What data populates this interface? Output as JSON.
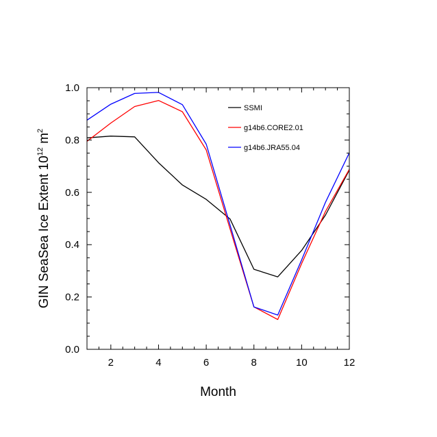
{
  "chart_data": {
    "type": "line",
    "title": "",
    "xlabel": "Month",
    "ylabel_main": "GIN SeaSea Ice Extent 10",
    "ylabel_exp": "12",
    "ylabel_unit": "m",
    "ylabel_unit_exp": "2",
    "xlim": [
      1,
      12
    ],
    "ylim": [
      0.0,
      1.0
    ],
    "xticks": [
      2,
      4,
      6,
      8,
      10,
      12
    ],
    "xtick_labels": [
      "2",
      "4",
      "6",
      "8",
      "10",
      "12"
    ],
    "yticks": [
      0.0,
      0.2,
      0.4,
      0.6,
      0.8,
      1.0
    ],
    "ytick_labels": [
      "0.0",
      "0.2",
      "0.4",
      "0.6",
      "0.8",
      "1.0"
    ],
    "legend_position": "top-right inside",
    "x": [
      1,
      2,
      3,
      4,
      5,
      6,
      7,
      8,
      9,
      10,
      11,
      12
    ],
    "series": [
      {
        "name": "SSMI",
        "color": "#000000",
        "values": [
          0.808,
          0.815,
          0.812,
          0.713,
          0.628,
          0.573,
          0.498,
          0.306,
          0.277,
          0.378,
          0.513,
          0.685
        ]
      },
      {
        "name": "g14b6.CORE2.01",
        "color": "#ff0000",
        "values": [
          0.795,
          0.865,
          0.928,
          0.951,
          0.908,
          0.762,
          0.46,
          0.162,
          0.114,
          0.328,
          0.527,
          0.688
        ]
      },
      {
        "name": "g14b6.JRA55.04",
        "color": "#0000ff",
        "values": [
          0.876,
          0.937,
          0.978,
          0.982,
          0.935,
          0.784,
          0.475,
          0.162,
          0.131,
          0.342,
          0.562,
          0.751
        ]
      }
    ]
  }
}
